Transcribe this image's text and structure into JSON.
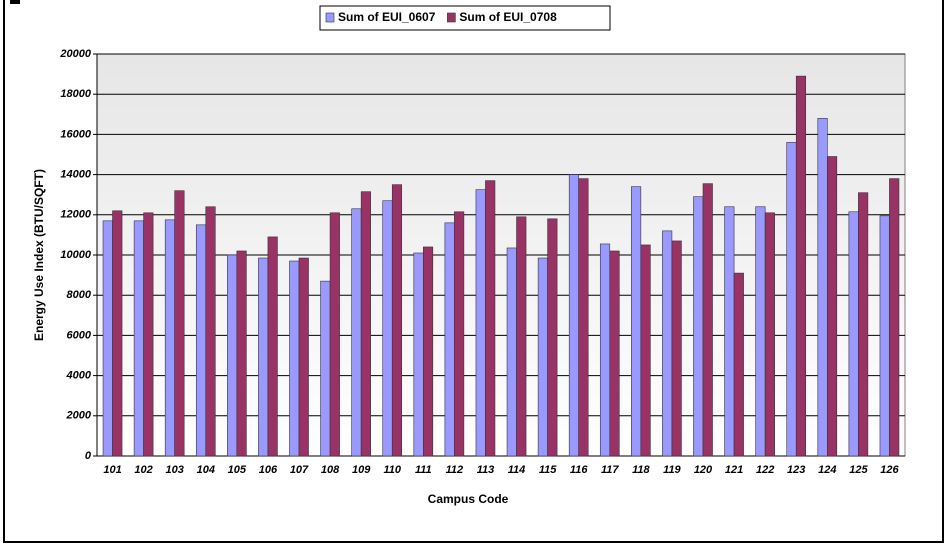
{
  "chart_data": {
    "type": "bar",
    "categories": [
      "101",
      "102",
      "103",
      "104",
      "105",
      "106",
      "107",
      "108",
      "109",
      "110",
      "111",
      "112",
      "113",
      "114",
      "115",
      "116",
      "117",
      "118",
      "119",
      "120",
      "121",
      "122",
      "123",
      "124",
      "125",
      "126"
    ],
    "series": [
      {
        "name": "Sum of EUI_0607",
        "color": "#9999ff",
        "values": [
          11700,
          11700,
          11750,
          11500,
          10000,
          9850,
          9700,
          8700,
          12300,
          12700,
          10100,
          11600,
          13250,
          10350,
          9850,
          14000,
          10550,
          13400,
          11200,
          12900,
          12400,
          12400,
          15600,
          16800,
          12150,
          11950
        ]
      },
      {
        "name": "Sum of EUI_0708",
        "color": "#993366",
        "values": [
          12200,
          12100,
          13200,
          12400,
          10200,
          10900,
          9850,
          12100,
          13150,
          13500,
          10400,
          12150,
          13700,
          11900,
          11800,
          13800,
          10200,
          10500,
          10700,
          13550,
          9100,
          12100,
          18900,
          14900,
          13100,
          13800
        ]
      }
    ],
    "ylim": [
      0,
      20000
    ],
    "yticks": [
      0,
      2000,
      4000,
      6000,
      8000,
      10000,
      12000,
      14000,
      16000,
      18000,
      20000
    ],
    "y_label": "Energy Use Index (BTU/SQFT)",
    "x_label": "Campus Code",
    "grid": true,
    "legend": "top"
  }
}
